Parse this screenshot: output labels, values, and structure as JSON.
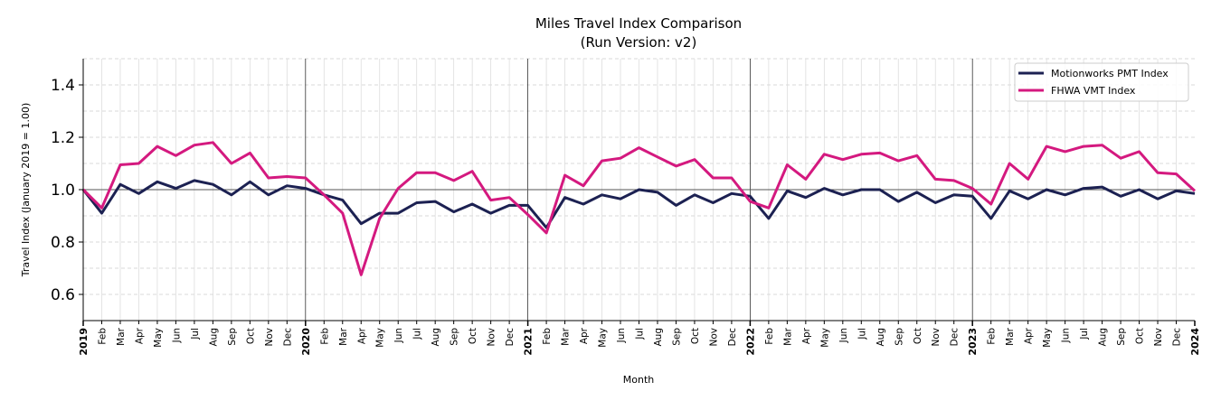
{
  "chart_data": {
    "type": "line",
    "title": "Miles Travel Index Comparison",
    "subtitle": "(Run Version: v2)",
    "xlabel": "Month",
    "ylabel": "Travel Index (January 2019 = 1.00)",
    "ylim": [
      0.5,
      1.5
    ],
    "yticks": [
      0.6,
      0.8,
      1.0,
      1.2,
      1.4
    ],
    "yticklabels": [
      "0.6",
      "0.8",
      "1.0",
      "1.2",
      "1.4"
    ],
    "xrange": [
      "2019-01",
      "2024-01"
    ],
    "grid": true,
    "reference_line_y": 1.0,
    "legend_position": "top-right",
    "month_labels": [
      "Feb",
      "Mar",
      "Apr",
      "May",
      "Jun",
      "Jul",
      "Aug",
      "Sep",
      "Oct",
      "Nov",
      "Dec"
    ],
    "year_labels": [
      "2019",
      "2020",
      "2021",
      "2022",
      "2023",
      "2024"
    ],
    "x": [
      "2019-01",
      "2019-02",
      "2019-03",
      "2019-04",
      "2019-05",
      "2019-06",
      "2019-07",
      "2019-08",
      "2019-09",
      "2019-10",
      "2019-11",
      "2019-12",
      "2020-01",
      "2020-02",
      "2020-03",
      "2020-04",
      "2020-05",
      "2020-06",
      "2020-07",
      "2020-08",
      "2020-09",
      "2020-10",
      "2020-11",
      "2020-12",
      "2021-01",
      "2021-02",
      "2021-03",
      "2021-04",
      "2021-05",
      "2021-06",
      "2021-07",
      "2021-08",
      "2021-09",
      "2021-10",
      "2021-11",
      "2021-12",
      "2022-01",
      "2022-02",
      "2022-03",
      "2022-04",
      "2022-05",
      "2022-06",
      "2022-07",
      "2022-08",
      "2022-09",
      "2022-10",
      "2022-11",
      "2022-12",
      "2023-01",
      "2023-02",
      "2023-03",
      "2023-04",
      "2023-05",
      "2023-06",
      "2023-07",
      "2023-08",
      "2023-09",
      "2023-10",
      "2023-11",
      "2023-12",
      "2024-01"
    ],
    "series": [
      {
        "name": "Motionworks PMT Index",
        "color": "#1c2152",
        "values": [
          1.0,
          0.91,
          1.02,
          0.985,
          1.03,
          1.005,
          1.035,
          1.02,
          0.98,
          1.03,
          0.98,
          1.015,
          1.005,
          0.98,
          0.96,
          0.87,
          0.91,
          0.91,
          0.95,
          0.955,
          0.915,
          0.945,
          0.91,
          0.94,
          0.94,
          0.855,
          0.97,
          0.945,
          0.98,
          0.965,
          1.0,
          0.99,
          0.94,
          0.98,
          0.95,
          0.985,
          0.975,
          0.89,
          0.995,
          0.97,
          1.005,
          0.98,
          1.0,
          1.0,
          0.955,
          0.99,
          0.95,
          0.98,
          0.975,
          0.89,
          0.995,
          0.965,
          1.0,
          0.98,
          1.005,
          1.01,
          0.975,
          1.0,
          0.965,
          0.995,
          0.985
        ]
      },
      {
        "name": "FHWA VMT Index",
        "color": "#d4197f",
        "values": [
          1.0,
          0.93,
          1.095,
          1.1,
          1.165,
          1.13,
          1.17,
          1.18,
          1.1,
          1.14,
          1.045,
          1.05,
          1.045,
          0.98,
          0.91,
          0.675,
          0.89,
          1.005,
          1.065,
          1.065,
          1.035,
          1.07,
          0.96,
          0.97,
          0.905,
          0.835,
          1.055,
          1.015,
          1.11,
          1.12,
          1.16,
          1.125,
          1.09,
          1.115,
          1.045,
          1.045,
          0.955,
          0.93,
          1.095,
          1.04,
          1.135,
          1.115,
          1.135,
          1.14,
          1.11,
          1.13,
          1.04,
          1.035,
          1.005,
          0.945,
          1.1,
          1.04,
          1.165,
          1.145,
          1.165,
          1.17,
          1.12,
          1.145,
          1.065,
          1.06,
          0.995
        ]
      }
    ]
  }
}
